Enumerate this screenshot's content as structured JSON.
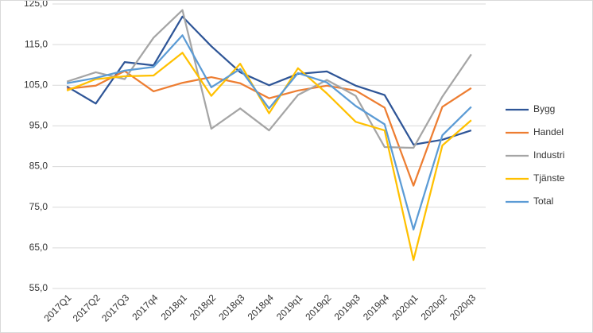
{
  "chart_data": {
    "type": "line",
    "categories": [
      "2017Q1",
      "2017Q2",
      "2017Q3",
      "2017q4",
      "2018q1",
      "2018q2",
      "2018q3",
      "2018q4",
      "2019q1",
      "2019q2",
      "2019q3",
      "2019q4",
      "2020q1",
      "2020q2",
      "2020q3"
    ],
    "series": [
      {
        "name": "Bygg",
        "color": "#2e5597",
        "values": [
          104.7,
          100.5,
          110.7,
          109.9,
          121.9,
          114.6,
          108.2,
          105.0,
          107.8,
          108.4,
          104.9,
          102.6,
          90.4,
          91.6,
          93.9
        ]
      },
      {
        "name": "Handel",
        "color": "#ed7d31",
        "values": [
          104.1,
          104.9,
          108.5,
          103.5,
          105.6,
          107.0,
          105.5,
          101.8,
          103.7,
          104.9,
          103.7,
          99.5,
          80.3,
          99.7,
          104.3
        ]
      },
      {
        "name": "Industri",
        "color": "#a5a5a5",
        "values": [
          105.9,
          108.2,
          106.5,
          116.7,
          123.5,
          94.3,
          99.3,
          93.9,
          102.6,
          106.3,
          102.4,
          89.8,
          89.6,
          102.2,
          112.6
        ]
      },
      {
        "name": "Tjänste",
        "color": "#ffc000",
        "values": [
          103.7,
          106.5,
          107.2,
          107.4,
          113.0,
          102.4,
          110.3,
          98.1,
          109.2,
          103.0,
          96.0,
          93.9,
          62.0,
          90.2,
          96.4
        ]
      },
      {
        "name": "Total",
        "color": "#5b9bd5",
        "values": [
          105.5,
          106.8,
          108.6,
          109.5,
          117.3,
          104.5,
          109.0,
          99.3,
          108.0,
          105.7,
          99.9,
          95.4,
          69.5,
          92.7,
          99.7
        ]
      }
    ],
    "ylim": [
      55,
      125
    ],
    "yticks": [
      {
        "value": 55,
        "label": "55,0"
      },
      {
        "value": 65,
        "label": "65,0"
      },
      {
        "value": 75,
        "label": "75,0"
      },
      {
        "value": 85,
        "label": "85,0"
      },
      {
        "value": 95,
        "label": "95,0"
      },
      {
        "value": 105,
        "label": "105,0"
      },
      {
        "value": 115,
        "label": "115,0"
      },
      {
        "value": 125,
        "label": "125,0"
      }
    ],
    "grid": true,
    "legend": "right"
  }
}
